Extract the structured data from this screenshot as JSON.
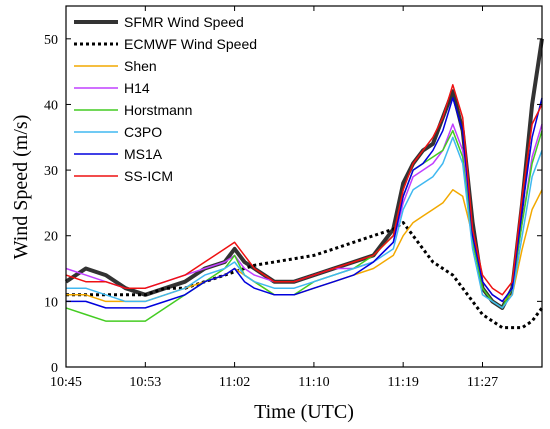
{
  "chart_data": {
    "type": "line",
    "xlabel": "Time (UTC)",
    "ylabel": "Wind Speed (m/s)",
    "x_tick_labels": [
      "10:45",
      "10:53",
      "11:02",
      "11:10",
      "11:19",
      "11:27"
    ],
    "x_tick_minutes": [
      645,
      653,
      662,
      670,
      679,
      687
    ],
    "xlim_minutes": [
      645,
      693
    ],
    "ylim": [
      0,
      55
    ],
    "y_ticks": [
      0,
      10,
      20,
      30,
      40,
      50
    ],
    "grid": false,
    "legend_position": "top-left",
    "x_minutes": [
      645,
      647,
      649,
      651,
      653,
      655,
      657,
      659,
      661,
      662,
      663,
      664,
      666,
      668,
      670,
      672,
      674,
      676,
      678,
      679,
      680,
      681,
      682,
      683,
      684,
      685,
      686,
      687,
      688,
      689,
      690,
      691,
      692,
      693
    ],
    "series": [
      {
        "name": "SFMR Wind Speed",
        "color": "#333333",
        "dash": "solid",
        "width": 4,
        "values": [
          13,
          15,
          14,
          12,
          11,
          12,
          13,
          15,
          16,
          18,
          16,
          15,
          13,
          13,
          14,
          15,
          16,
          17,
          21,
          28,
          31,
          33,
          34,
          38,
          42,
          36,
          22,
          12,
          10,
          9,
          12,
          25,
          40,
          50
        ]
      },
      {
        "name": "ECMWF Wind Speed",
        "color": "#000000",
        "dash": "dotted",
        "width": 3,
        "values": [
          11,
          11,
          11,
          11,
          11,
          12,
          12,
          13,
          14,
          14.5,
          15,
          15.5,
          16,
          16.5,
          17,
          18,
          19,
          20,
          21,
          22,
          20,
          18,
          16,
          15,
          14,
          12,
          10,
          8,
          7,
          6,
          6,
          6,
          7,
          9
        ]
      },
      {
        "name": "Shen",
        "color": "#F2A900",
        "dash": "solid",
        "width": 1.5,
        "values": [
          11,
          11,
          10,
          10,
          10,
          11,
          12,
          13,
          14,
          15,
          14,
          13,
          11,
          11,
          12,
          13,
          14,
          15,
          17,
          20,
          22,
          23,
          24,
          25,
          27,
          26,
          20,
          13,
          11,
          10,
          11,
          18,
          24,
          27
        ]
      },
      {
        "name": "H14",
        "color": "#C040FF",
        "dash": "solid",
        "width": 1.5,
        "values": [
          15,
          14,
          13,
          12,
          12,
          13,
          14,
          15,
          16,
          17,
          15,
          14,
          13,
          13,
          14,
          15,
          15,
          16,
          19,
          25,
          29,
          30,
          31,
          33,
          37,
          33,
          20,
          13,
          11,
          10,
          12,
          22,
          32,
          37
        ]
      },
      {
        "name": "Horstmann",
        "color": "#44CC22",
        "dash": "solid",
        "width": 1.5,
        "values": [
          9,
          8,
          7,
          7,
          7,
          9,
          11,
          13,
          15,
          17,
          14,
          13,
          11,
          11,
          13,
          14,
          15,
          17,
          20,
          26,
          30,
          31,
          32,
          33,
          36,
          32,
          19,
          12,
          10,
          9,
          12,
          22,
          31,
          36
        ]
      },
      {
        "name": "C3PO",
        "color": "#40B8F0",
        "dash": "solid",
        "width": 1.5,
        "values": [
          12,
          12,
          11,
          10,
          10,
          11,
          12,
          14,
          15,
          16,
          14,
          13,
          12,
          12,
          13,
          14,
          15,
          16,
          18,
          24,
          27,
          28,
          29,
          31,
          35,
          31,
          18,
          11,
          10,
          9,
          11,
          20,
          29,
          33
        ]
      },
      {
        "name": "MS1A",
        "color": "#0000DD",
        "dash": "solid",
        "width": 1.5,
        "values": [
          10,
          10,
          9,
          9,
          9,
          10,
          11,
          13,
          14,
          15,
          13,
          12,
          11,
          11,
          12,
          13,
          14,
          16,
          19,
          26,
          30,
          31,
          33,
          36,
          41,
          36,
          20,
          13,
          11,
          10,
          12,
          24,
          35,
          41
        ]
      },
      {
        "name": "SS-ICM",
        "color": "#EE1111",
        "dash": "solid",
        "width": 1.5,
        "values": [
          14,
          13,
          13,
          12,
          12,
          13,
          14,
          16,
          18,
          19,
          17,
          15,
          13,
          13,
          14,
          15,
          16,
          17,
          20,
          27,
          31,
          33,
          35,
          38,
          43,
          38,
          21,
          14,
          12,
          11,
          13,
          26,
          37,
          40
        ]
      }
    ]
  }
}
